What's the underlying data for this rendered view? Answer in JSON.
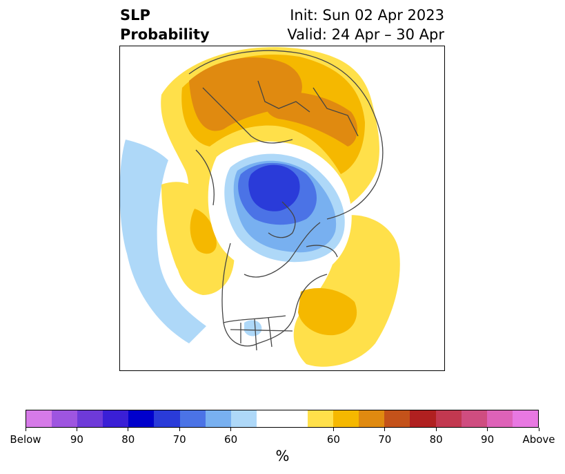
{
  "title": {
    "left_line1": "SLP",
    "left_line2": "Probability",
    "right_line1": "Init: Sun 02 Apr 2023",
    "right_line2": "Valid: 24 Apr – 30 Apr"
  },
  "map": {
    "projection": "north-polar-stereographic",
    "regions": [
      {
        "name": "arctic-low-core",
        "category": "Below 80"
      },
      {
        "name": "arctic-low",
        "category": "Below 60-70"
      },
      {
        "name": "eurasia-high",
        "category": "Above 60-75"
      },
      {
        "name": "pacific-low",
        "category": "Below"
      },
      {
        "name": "north-atlantic-high",
        "category": "Above 60-65"
      }
    ]
  },
  "colorbar": {
    "unit": "%",
    "colors": [
      "#d67ae8",
      "#9e55e0",
      "#6e3ad9",
      "#3a1fd6",
      "#0000cc",
      "#2a3bd9",
      "#4b73e6",
      "#78b0f0",
      "#aed8f8",
      "#ffffff",
      "#ffffff",
      "#ffe04a",
      "#f5b800",
      "#e08a10",
      "#c4521a",
      "#b02020",
      "#c23850",
      "#cf4d80",
      "#de62b8",
      "#e878e2"
    ],
    "labels": [
      "Below",
      "90",
      "80",
      "70",
      "60",
      "60",
      "70",
      "80",
      "90",
      "Above"
    ]
  }
}
